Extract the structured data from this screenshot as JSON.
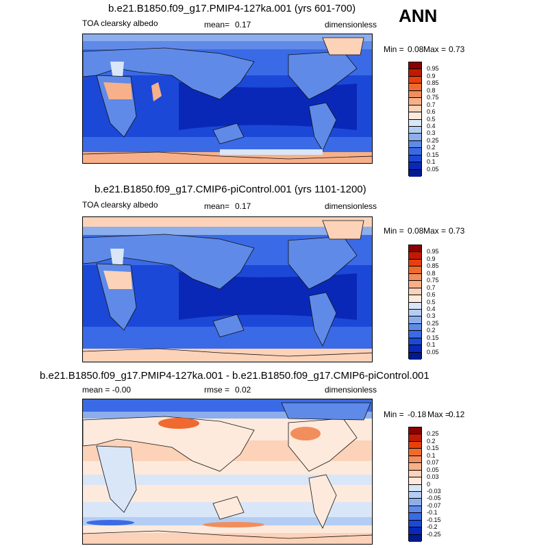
{
  "season": "ANN",
  "panels": [
    {
      "title": "b.e21.B1850.f09_g17.PMIP4-127ka.001 (yrs 601-700)",
      "left": "TOA clearsky albedo",
      "center_label": "mean=",
      "center_value": "0.17",
      "right": "dimensionless",
      "min_label": "Min =",
      "min_value": "0.08",
      "max_label": "Max =",
      "max_value": "0.73",
      "levels": [
        "0.95",
        "0.9",
        "0.85",
        "0.8",
        "0.75",
        "0.7",
        "0.6",
        "0.5",
        "0.4",
        "0.3",
        "0.25",
        "0.2",
        "0.15",
        "0.1",
        "0.05"
      ],
      "colors": [
        "#8b0000",
        "#c11a00",
        "#e8400a",
        "#f06a30",
        "#f28d5c",
        "#f7b08a",
        "#fcd2b8",
        "#fdeadc",
        "#d9e6f8",
        "#b4cdf3",
        "#8caeec",
        "#5f8ae8",
        "#3a6ae6",
        "#1c48d8",
        "#0a28b8",
        "#001a8f"
      ]
    },
    {
      "title": "b.e21.B1850.f09_g17.CMIP6-piControl.001 (yrs 1101-1200)",
      "left": "TOA clearsky albedo",
      "center_label": "mean=",
      "center_value": "0.17",
      "right": "dimensionless",
      "min_label": "Min =",
      "min_value": "0.08",
      "max_label": "Max =",
      "max_value": "0.73",
      "levels": [
        "0.95",
        "0.9",
        "0.85",
        "0.8",
        "0.75",
        "0.7",
        "0.6",
        "0.5",
        "0.4",
        "0.3",
        "0.25",
        "0.2",
        "0.15",
        "0.1",
        "0.05"
      ],
      "colors": [
        "#8b0000",
        "#c11a00",
        "#e8400a",
        "#f06a30",
        "#f28d5c",
        "#f7b08a",
        "#fcd2b8",
        "#fdeadc",
        "#d9e6f8",
        "#b4cdf3",
        "#8caeec",
        "#5f8ae8",
        "#3a6ae6",
        "#1c48d8",
        "#0a28b8",
        "#001a8f"
      ]
    },
    {
      "title": "b.e21.B1850.f09_g17.PMIP4-127ka.001 - b.e21.B1850.f09_g17.CMIP6-piControl.001",
      "left": "mean =  -0.00",
      "center_label": "rmse =",
      "center_value": "0.02",
      "right": "dimensionless",
      "min_label": "Min =",
      "min_value": "-0.18",
      "max_label": "Max =",
      "max_value": "0.12",
      "levels": [
        "0.25",
        "0.2",
        "0.15",
        "0.1",
        "0.07",
        "0.05",
        "0.03",
        "0",
        "-0.03",
        "-0.05",
        "-0.07",
        "-0.1",
        "-0.15",
        "-0.2",
        "-0.25"
      ],
      "colors": [
        "#8b0000",
        "#c11a00",
        "#e8400a",
        "#f06a30",
        "#f28d5c",
        "#f7b08a",
        "#fcd2b8",
        "#fdeadc",
        "#d9e6f8",
        "#b4cdf3",
        "#8caeec",
        "#5f8ae8",
        "#3a6ae6",
        "#1c48d8",
        "#0a28b8",
        "#001a8f"
      ]
    }
  ]
}
